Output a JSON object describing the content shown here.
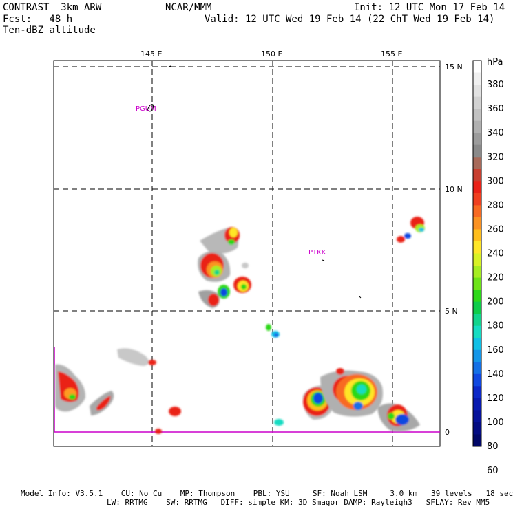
{
  "header": {
    "model": "CONTRAST  3km ARW",
    "org": "NCAR/MMM",
    "init": "Init: 12 UTC Mon 17 Feb 14",
    "fcst": "Fcst:   48 h",
    "valid": "Valid: 12 UTC Wed 19 Feb 14 (22 ChT Wed 19 Feb 14)",
    "field": "Ten-dBZ altitude"
  },
  "map": {
    "lon_labels": [
      "145 E",
      "150 E",
      "155 E"
    ],
    "lat_labels": [
      "15 N",
      "10 N",
      "5 N",
      "0"
    ],
    "stations": [
      "PGUM",
      "PTKK"
    ],
    "grid_color": "#000000",
    "boundary_color": "#cc00cc"
  },
  "colorbar": {
    "unit": "hPa",
    "ticks": [
      "380",
      "360",
      "340",
      "320",
      "300",
      "280",
      "260",
      "240",
      "220",
      "200",
      "180",
      "160",
      "140",
      "120",
      "100",
      "80",
      "60"
    ],
    "colors": [
      "#ffffff",
      "#f0f0f0",
      "#e2e2e2",
      "#d2d2d2",
      "#c2c2c2",
      "#b0b0b0",
      "#9c9c9c",
      "#8a8a8a",
      "#a86a5a",
      "#c84030",
      "#ea2218",
      "#f04020",
      "#f86a22",
      "#fb9222",
      "#ffbe1c",
      "#ffe628",
      "#d8f226",
      "#a6ee22",
      "#6ee418",
      "#2cd818",
      "#0ecc4a",
      "#12d48c",
      "#16dcc2",
      "#10c0e6",
      "#1496e8",
      "#1470e6",
      "#1048e0",
      "#0c28c8",
      "#081ab0",
      "#06129a",
      "#040c82",
      "#020868"
    ]
  },
  "footer": {
    "line1": "Model Info: V3.5.1    CU: No Cu    MP: Thompson    PBL: YSU     SF: Noah LSM     3.0 km   39 levels   18 sec",
    "line2": "LW: RRTMG    SW: RRTMG   DIFF: simple KM: 3D Smagor DAMP: Rayleigh3   SFLAY: Rev MM5"
  }
}
